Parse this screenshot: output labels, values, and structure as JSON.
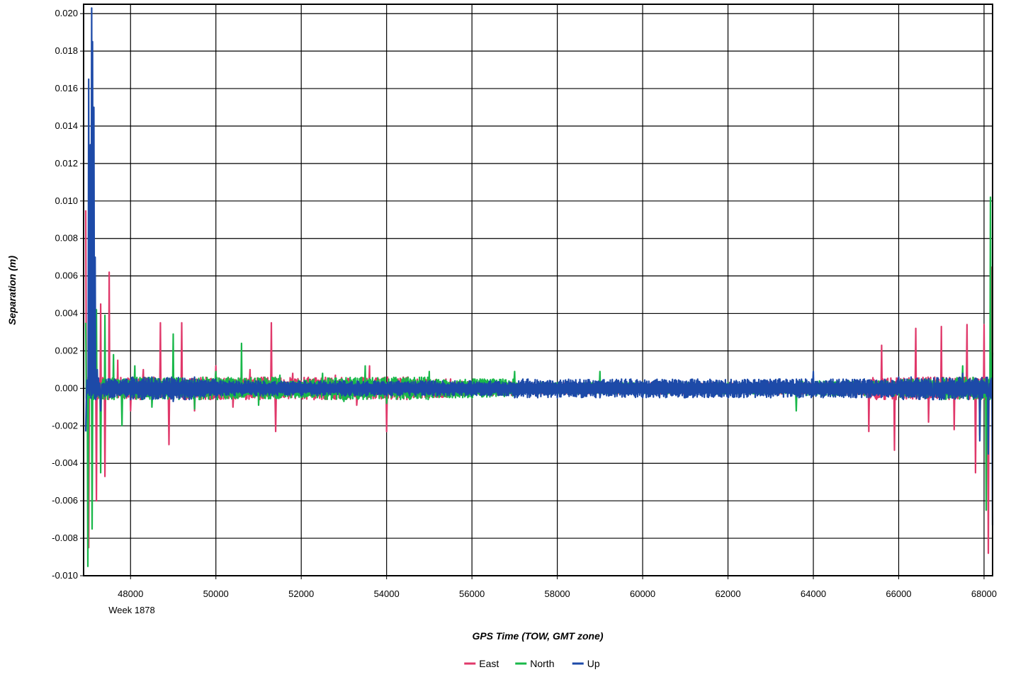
{
  "chart_data": {
    "type": "line",
    "xlabel": "GPS Time (TOW, GMT zone)",
    "ylabel": "Separation (m)",
    "x_sublabel": "Week 1878",
    "xlim": [
      46900,
      68200
    ],
    "ylim": [
      -0.01,
      0.0205
    ],
    "x_ticks": [
      48000,
      50000,
      52000,
      54000,
      56000,
      58000,
      60000,
      62000,
      64000,
      66000,
      68000
    ],
    "y_ticks": [
      0.02,
      0.018,
      0.016,
      0.014,
      0.012,
      0.01,
      0.008,
      0.006,
      0.004,
      0.002,
      0.0,
      -0.002,
      -0.004,
      -0.006,
      -0.008,
      -0.01
    ],
    "x_tick_labels": [
      "48000",
      "50000",
      "52000",
      "54000",
      "56000",
      "58000",
      "60000",
      "62000",
      "64000",
      "66000",
      "68000"
    ],
    "y_tick_labels": [
      "0.020",
      "0.018",
      "0.016",
      "0.014",
      "0.012",
      "0.010",
      "0.008",
      "0.006",
      "0.004",
      "0.002",
      "0.000",
      "-0.002",
      "-0.004",
      "-0.006",
      "-0.008",
      "-0.010"
    ],
    "grid": true,
    "legend_position": "bottom-center",
    "series": [
      {
        "name": "East",
        "color": "#e0386a",
        "x": [
          46950,
          47020,
          47100,
          47200,
          47300,
          47400,
          47500,
          47700,
          48000,
          48300,
          48700,
          48900,
          49200,
          49500,
          50000,
          50400,
          50800,
          51300,
          51400,
          51800,
          52300,
          52800,
          53300,
          53600,
          54000,
          54500,
          55000,
          55500,
          56000,
          57000,
          58000,
          59000,
          60000,
          61000,
          62000,
          63000,
          64000,
          65000,
          65300,
          65600,
          65900,
          66400,
          66700,
          67000,
          67300,
          67600,
          67800,
          68000,
          68100,
          68180
        ],
        "y": [
          0.0095,
          -0.0085,
          0.0065,
          -0.006,
          0.0045,
          -0.0047,
          0.0062,
          0.0015,
          -0.0012,
          0.001,
          0.0035,
          -0.003,
          0.0035,
          -0.0012,
          0.0012,
          -0.001,
          0.001,
          0.0035,
          -0.0023,
          0.0008,
          -0.0006,
          0.0007,
          -0.0009,
          0.0012,
          -0.0023,
          0.0006,
          -0.0005,
          0.0005,
          -0.0004,
          0.0004,
          -0.0003,
          0.0004,
          -0.0003,
          0.0003,
          -0.0003,
          0.0003,
          -0.0003,
          0.0004,
          -0.0023,
          0.0023,
          -0.0033,
          0.0032,
          -0.0018,
          0.0033,
          -0.0022,
          0.0034,
          -0.0045,
          0.0034,
          -0.0088,
          0.0065
        ]
      },
      {
        "name": "North",
        "color": "#19b84a",
        "x": [
          46950,
          47000,
          47050,
          47100,
          47200,
          47300,
          47400,
          47600,
          47800,
          48100,
          48500,
          49000,
          49500,
          50000,
          50600,
          51000,
          51500,
          52000,
          52500,
          53000,
          53500,
          54000,
          55000,
          56000,
          57000,
          58000,
          59000,
          60000,
          61000,
          62000,
          63000,
          63600,
          64000,
          65000,
          66000,
          67000,
          67500,
          67900,
          68050,
          68150,
          68200
        ],
        "y": [
          0.0035,
          -0.0095,
          0.0085,
          -0.0075,
          0.0042,
          -0.0045,
          0.0039,
          0.0018,
          -0.002,
          0.0012,
          -0.001,
          0.0029,
          -0.0011,
          0.0009,
          0.0024,
          -0.0009,
          0.0007,
          -0.0005,
          0.0008,
          -0.0007,
          0.0012,
          -0.0008,
          0.0009,
          -0.0005,
          0.0009,
          0.0003,
          0.0009,
          0.0003,
          0.0003,
          0.0003,
          0.0003,
          -0.0012,
          0.0004,
          -0.0004,
          0.0005,
          -0.0006,
          0.0012,
          -0.0025,
          -0.0065,
          0.0102,
          0.0019
        ]
      },
      {
        "name": "Up",
        "color": "#1d4aa8",
        "x": [
          46950,
          47020,
          47060,
          47090,
          47110,
          47140,
          47170,
          47220,
          47300,
          47500,
          48000,
          48500,
          49000,
          49500,
          50000,
          51000,
          52000,
          53000,
          54000,
          55000,
          56000,
          57000,
          58000,
          59000,
          60000,
          61000,
          62000,
          63000,
          64000,
          65000,
          66000,
          66800,
          67500,
          67900,
          68100,
          68200
        ],
        "y": [
          -0.0023,
          0.0165,
          0.013,
          0.0203,
          0.0185,
          0.015,
          0.007,
          0.001,
          -0.0012,
          0.0005,
          -0.0006,
          0.0006,
          -0.0007,
          0.0006,
          -0.0005,
          0.0004,
          -0.0004,
          0.0004,
          -0.0004,
          0.0004,
          -0.0004,
          -0.0005,
          -0.0005,
          -0.0005,
          -0.0005,
          -0.0005,
          -0.0005,
          -0.0005,
          0.0009,
          -0.0005,
          0.0006,
          -0.0006,
          0.0008,
          -0.0028,
          -0.0035,
          -0.0073
        ]
      }
    ]
  }
}
